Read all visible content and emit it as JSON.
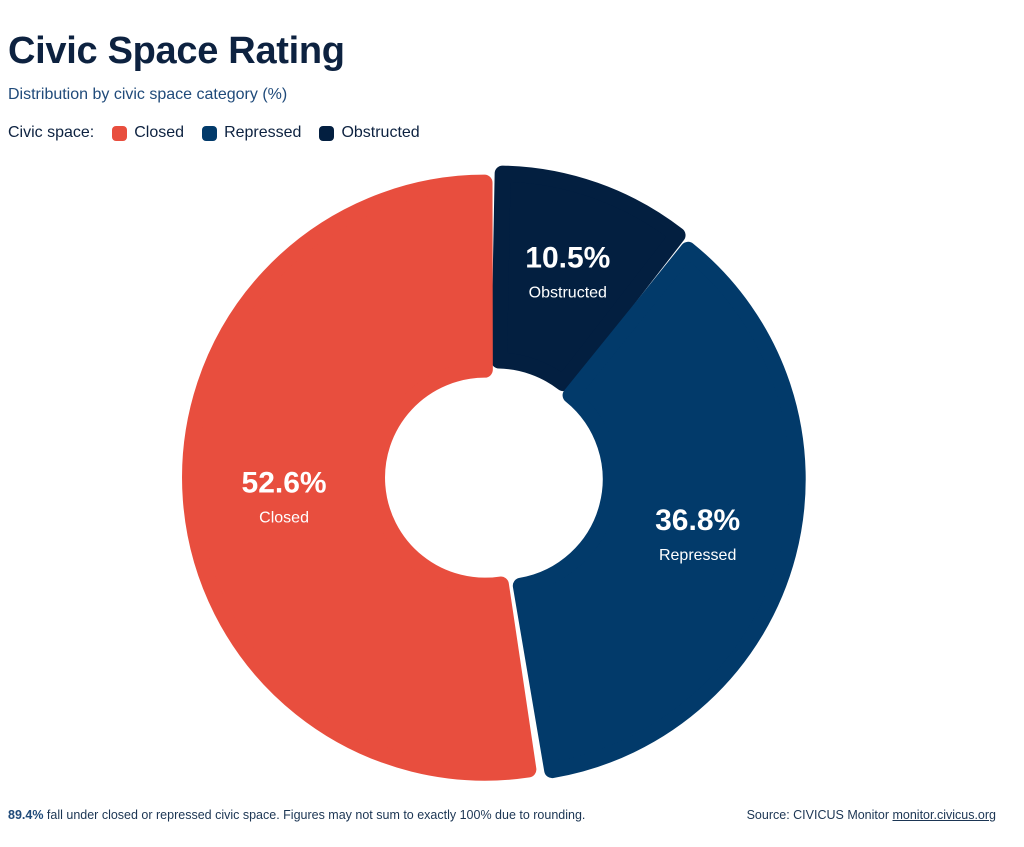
{
  "header": {
    "title": "Civic Space Rating",
    "subtitle": "Distribution by civic space category (%)"
  },
  "legend": {
    "title": "Civic space:",
    "items": [
      {
        "label": "Closed",
        "color": "#e84e3e"
      },
      {
        "label": "Repressed",
        "color": "#023a6a"
      },
      {
        "label": "Obstructed",
        "color": "#031f40"
      }
    ]
  },
  "chart_data": {
    "type": "pie",
    "variant": "donut",
    "title": "Civic Space Rating",
    "subtitle": "Distribution by civic space category (%)",
    "categories": [
      "Closed",
      "Repressed",
      "Obstructed"
    ],
    "values": [
      52.6,
      36.8,
      10.5
    ],
    "value_labels": [
      "52.6%",
      "36.8%",
      "10.5%"
    ],
    "colors": [
      "#e84e3e",
      "#023a6a",
      "#031f40"
    ],
    "legend_position": "top-left"
  },
  "footer": {
    "note_highlight": "89.4%",
    "note_text": " fall under closed or repressed civic space. Figures may not sum to exactly 100% due to rounding.",
    "source_prefix": "Source: CIVICUS Monitor ",
    "source_link": "monitor.civicus.org"
  }
}
